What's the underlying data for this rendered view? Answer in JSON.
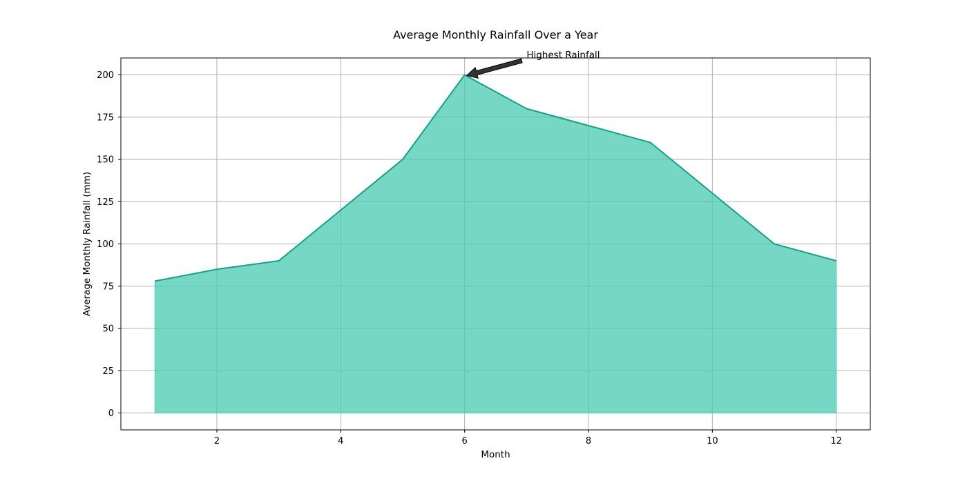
{
  "chart_data": {
    "type": "area",
    "title": "Average Monthly Rainfall Over a Year",
    "xlabel": "Month",
    "ylabel": "Average Monthly Rainfall (mm)",
    "x": [
      1,
      2,
      3,
      4,
      5,
      6,
      7,
      8,
      9,
      10,
      11,
      12
    ],
    "series": [
      {
        "values": [
          78,
          85,
          90,
          120,
          150,
          200,
          180,
          170,
          160,
          130,
          100,
          90
        ]
      }
    ],
    "xlim": [
      0.45,
      12.55
    ],
    "ylim": [
      -10,
      210
    ],
    "xticks": [
      2,
      4,
      6,
      8,
      10,
      12
    ],
    "yticks": [
      0,
      25,
      50,
      75,
      100,
      125,
      150,
      175,
      200
    ],
    "grid": true,
    "fill_color": "#48c9b0",
    "line_color": "#16a085",
    "annotation": {
      "text": "Highest Rainfall",
      "point": {
        "x": 6,
        "y": 200
      },
      "text_anchor_point": {
        "x": 7,
        "y": 210
      }
    }
  }
}
